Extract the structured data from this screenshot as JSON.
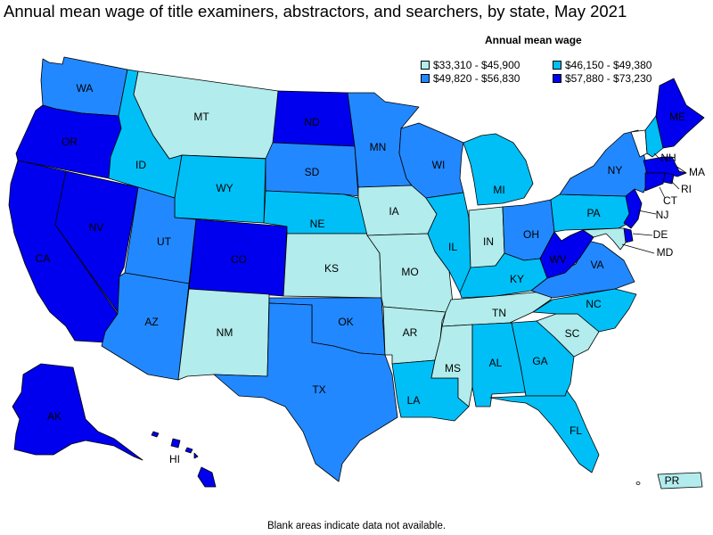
{
  "title": "Annual mean wage of title examiners, abstractors, and searchers, by state, May 2021",
  "legend": {
    "title": "Annual mean wage",
    "bins": [
      {
        "label": "$33,310 - $45,900",
        "color": "#b2ecec"
      },
      {
        "label": "$46,150 - $49,380",
        "color": "#00bff6"
      },
      {
        "label": "$49,820 - $56,830",
        "color": "#2288ff"
      },
      {
        "label": "$57,880 - $73,230",
        "color": "#0000ee"
      }
    ]
  },
  "footnote": "Blank areas indicate data not available.",
  "states": {
    "WA": {
      "label": "WA",
      "bin": 2
    },
    "OR": {
      "label": "OR",
      "bin": 3
    },
    "CA": {
      "label": "CA",
      "bin": 3
    },
    "NV": {
      "label": "NV",
      "bin": 3
    },
    "ID": {
      "label": "ID",
      "bin": 1
    },
    "MT": {
      "label": "MT",
      "bin": 0
    },
    "WY": {
      "label": "WY",
      "bin": 1
    },
    "UT": {
      "label": "UT",
      "bin": 2
    },
    "AZ": {
      "label": "AZ",
      "bin": 2
    },
    "CO": {
      "label": "CO",
      "bin": 3
    },
    "NM": {
      "label": "NM",
      "bin": 0
    },
    "ND": {
      "label": "ND",
      "bin": 3
    },
    "SD": {
      "label": "SD",
      "bin": 2
    },
    "NE": {
      "label": "NE",
      "bin": 1
    },
    "KS": {
      "label": "KS",
      "bin": 0
    },
    "OK": {
      "label": "OK",
      "bin": 2
    },
    "TX": {
      "label": "TX",
      "bin": 2
    },
    "MN": {
      "label": "MN",
      "bin": 2
    },
    "IA": {
      "label": "IA",
      "bin": 0
    },
    "MO": {
      "label": "MO",
      "bin": 0
    },
    "AR": {
      "label": "AR",
      "bin": 0
    },
    "LA": {
      "label": "LA",
      "bin": 1
    },
    "WI": {
      "label": "WI",
      "bin": 2
    },
    "IL": {
      "label": "IL",
      "bin": 1
    },
    "MI": {
      "label": "MI",
      "bin": 1
    },
    "IN": {
      "label": "IN",
      "bin": 0
    },
    "OH": {
      "label": "OH",
      "bin": 2
    },
    "KY": {
      "label": "KY",
      "bin": 1
    },
    "TN": {
      "label": "TN",
      "bin": 0
    },
    "MS": {
      "label": "MS",
      "bin": 0
    },
    "AL": {
      "label": "AL",
      "bin": 1
    },
    "GA": {
      "label": "GA",
      "bin": 1
    },
    "FL": {
      "label": "FL",
      "bin": 1
    },
    "SC": {
      "label": "SC",
      "bin": 0
    },
    "NC": {
      "label": "NC",
      "bin": 1
    },
    "VA": {
      "label": "VA",
      "bin": 2
    },
    "WV": {
      "label": "WV",
      "bin": 3
    },
    "PA": {
      "label": "PA",
      "bin": 1
    },
    "NY": {
      "label": "NY",
      "bin": 2
    },
    "VT": {
      "label": "",
      "bin": null
    },
    "NH": {
      "label": "NH",
      "bin": 1
    },
    "ME": {
      "label": "ME",
      "bin": 3
    },
    "MA": {
      "label": "MA",
      "bin": 3
    },
    "RI": {
      "label": "RI",
      "bin": 3
    },
    "CT": {
      "label": "CT",
      "bin": 3
    },
    "NJ": {
      "label": "NJ",
      "bin": 3
    },
    "DE": {
      "label": "DE",
      "bin": 3
    },
    "MD": {
      "label": "MD",
      "bin": 0
    },
    "AK": {
      "label": "AK",
      "bin": 3
    },
    "HI": {
      "label": "HI",
      "bin": 3
    },
    "PR": {
      "label": "PR",
      "bin": 0
    }
  }
}
